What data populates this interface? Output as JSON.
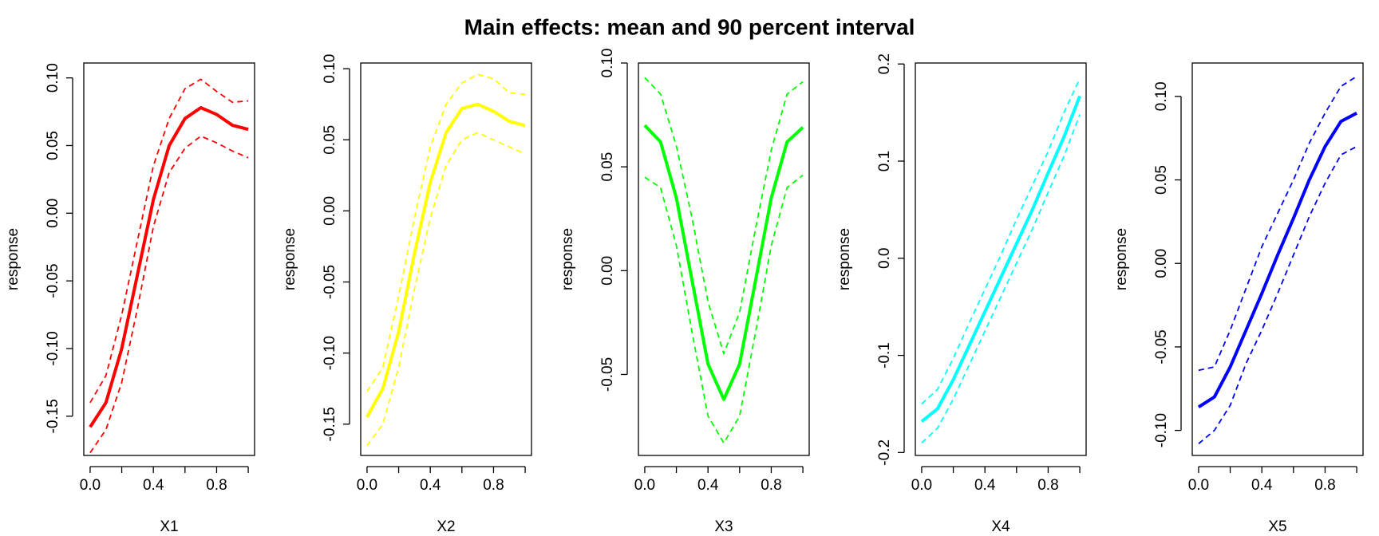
{
  "title": "Main effects: mean and 90 percent interval",
  "chart_data": [
    {
      "type": "line",
      "xlabel": "X1",
      "ylabel": "response",
      "x": [
        0,
        0.1,
        0.2,
        0.3,
        0.4,
        0.5,
        0.6,
        0.7,
        0.8,
        0.9,
        1
      ],
      "xlim": [
        -0.04,
        1.04
      ],
      "ylim": [
        -0.179,
        0.111
      ],
      "xticks": [
        {
          "value": 0,
          "label": "0.0"
        },
        {
          "value": 0.2,
          "label": null
        },
        {
          "value": 0.4,
          "label": "0.4"
        },
        {
          "value": 0.6,
          "label": null
        },
        {
          "value": 0.8,
          "label": "0.8"
        },
        {
          "value": 1,
          "label": null
        }
      ],
      "yticks": [
        {
          "value": -0.15,
          "label": "-0.15"
        },
        {
          "value": -0.1,
          "label": "-0.10"
        },
        {
          "value": -0.05,
          "label": "-0.05"
        },
        {
          "value": 0,
          "label": "0.00"
        },
        {
          "value": 0.05,
          "label": "0.05"
        },
        {
          "value": 0.1,
          "label": "0.10"
        }
      ],
      "series": [
        {
          "color": "#ff0000",
          "linestyle": "solid",
          "values": [
            -0.158,
            -0.14,
            -0.1,
            -0.045,
            0.01,
            0.05,
            0.07,
            0.078,
            0.073,
            0.065,
            0.062
          ]
        },
        {
          "color": "#ff0000",
          "linestyle": "dashed",
          "values": [
            -0.14,
            -0.12,
            -0.075,
            -0.02,
            0.035,
            0.07,
            0.092,
            0.099,
            0.09,
            0.082,
            0.083
          ]
        },
        {
          "color": "#ff0000",
          "linestyle": "dashed",
          "values": [
            -0.177,
            -0.16,
            -0.125,
            -0.07,
            -0.01,
            0.03,
            0.048,
            0.057,
            0.052,
            0.046,
            0.041
          ]
        }
      ]
    },
    {
      "type": "line",
      "xlabel": "X2",
      "ylabel": "response",
      "x": [
        0,
        0.1,
        0.2,
        0.3,
        0.4,
        0.5,
        0.6,
        0.7,
        0.8,
        0.9,
        1
      ],
      "xlim": [
        -0.04,
        1.04
      ],
      "ylim": [
        -0.172,
        0.104
      ],
      "xticks": [
        {
          "value": 0,
          "label": "0.0"
        },
        {
          "value": 0.2,
          "label": null
        },
        {
          "value": 0.4,
          "label": "0.4"
        },
        {
          "value": 0.6,
          "label": null
        },
        {
          "value": 0.8,
          "label": "0.8"
        },
        {
          "value": 1,
          "label": null
        }
      ],
      "yticks": [
        {
          "value": -0.15,
          "label": "-0.15"
        },
        {
          "value": -0.1,
          "label": "-0.10"
        },
        {
          "value": -0.05,
          "label": "-0.05"
        },
        {
          "value": 0,
          "label": "0.00"
        },
        {
          "value": 0.05,
          "label": "0.05"
        },
        {
          "value": 0.1,
          "label": "0.10"
        }
      ],
      "series": [
        {
          "color": "#ffff00",
          "linestyle": "solid",
          "values": [
            -0.145,
            -0.125,
            -0.085,
            -0.03,
            0.02,
            0.055,
            0.072,
            0.075,
            0.07,
            0.063,
            0.06
          ]
        },
        {
          "color": "#ffff00",
          "linestyle": "dashed",
          "values": [
            -0.127,
            -0.11,
            -0.06,
            -0.005,
            0.045,
            0.075,
            0.09,
            0.096,
            0.093,
            0.083,
            0.082
          ]
        },
        {
          "color": "#ffff00",
          "linestyle": "dashed",
          "values": [
            -0.165,
            -0.15,
            -0.11,
            -0.055,
            -0.005,
            0.032,
            0.05,
            0.055,
            0.05,
            0.045,
            0.04
          ]
        }
      ]
    },
    {
      "type": "line",
      "xlabel": "X3",
      "ylabel": "response",
      "x": [
        0,
        0.1,
        0.2,
        0.3,
        0.4,
        0.5,
        0.6,
        0.7,
        0.8,
        0.9,
        1
      ],
      "xlim": [
        -0.04,
        1.04
      ],
      "ylim": [
        -0.089,
        0.1
      ],
      "xticks": [
        {
          "value": 0,
          "label": "0.0"
        },
        {
          "value": 0.2,
          "label": null
        },
        {
          "value": 0.4,
          "label": "0.4"
        },
        {
          "value": 0.6,
          "label": null
        },
        {
          "value": 0.8,
          "label": "0.8"
        },
        {
          "value": 1,
          "label": null
        }
      ],
      "yticks": [
        {
          "value": -0.05,
          "label": "-0.05"
        },
        {
          "value": 0,
          "label": "0.00"
        },
        {
          "value": 0.05,
          "label": "0.05"
        },
        {
          "value": 0.1,
          "label": "0.10"
        }
      ],
      "series": [
        {
          "color": "#00ff00",
          "linestyle": "solid",
          "values": [
            0.07,
            0.062,
            0.035,
            -0.005,
            -0.045,
            -0.062,
            -0.045,
            -0.005,
            0.035,
            0.062,
            0.069
          ]
        },
        {
          "color": "#00ff00",
          "linestyle": "dashed",
          "values": [
            0.093,
            0.085,
            0.06,
            0.025,
            -0.015,
            -0.04,
            -0.02,
            0.02,
            0.058,
            0.085,
            0.091
          ]
        },
        {
          "color": "#00ff00",
          "linestyle": "dashed",
          "values": [
            0.045,
            0.04,
            0.012,
            -0.03,
            -0.07,
            -0.083,
            -0.07,
            -0.03,
            0.012,
            0.04,
            0.046
          ]
        }
      ]
    },
    {
      "type": "line",
      "xlabel": "X4",
      "ylabel": "response",
      "x": [
        0,
        0.1,
        0.2,
        0.3,
        0.4,
        0.5,
        0.6,
        0.7,
        0.8,
        0.9,
        1
      ],
      "xlim": [
        -0.04,
        1.04
      ],
      "ylim": [
        -0.203,
        0.201
      ],
      "xticks": [
        {
          "value": 0,
          "label": "0.0"
        },
        {
          "value": 0.2,
          "label": null
        },
        {
          "value": 0.4,
          "label": "0.4"
        },
        {
          "value": 0.6,
          "label": null
        },
        {
          "value": 0.8,
          "label": "0.8"
        },
        {
          "value": 1,
          "label": null
        }
      ],
      "yticks": [
        {
          "value": -0.2,
          "label": "-0.2"
        },
        {
          "value": -0.1,
          "label": "-0.1"
        },
        {
          "value": 0,
          "label": "0.0"
        },
        {
          "value": 0.1,
          "label": "0.1"
        },
        {
          "value": 0.2,
          "label": "0.2"
        }
      ],
      "series": [
        {
          "color": "#00ffff",
          "linestyle": "solid",
          "values": [
            -0.168,
            -0.155,
            -0.125,
            -0.09,
            -0.055,
            -0.02,
            0.015,
            0.05,
            0.088,
            0.125,
            0.167
          ]
        },
        {
          "color": "#00ffff",
          "linestyle": "dashed",
          "values": [
            -0.15,
            -0.135,
            -0.103,
            -0.067,
            -0.032,
            0.003,
            0.04,
            0.075,
            0.11,
            0.15,
            0.185
          ]
        },
        {
          "color": "#00ffff",
          "linestyle": "dashed",
          "values": [
            -0.19,
            -0.175,
            -0.145,
            -0.11,
            -0.075,
            -0.04,
            -0.005,
            0.03,
            0.068,
            0.105,
            0.148
          ]
        }
      ]
    },
    {
      "type": "line",
      "xlabel": "X5",
      "ylabel": "response",
      "x": [
        0,
        0.1,
        0.2,
        0.3,
        0.4,
        0.5,
        0.6,
        0.7,
        0.8,
        0.9,
        1
      ],
      "xlim": [
        -0.04,
        1.04
      ],
      "ylim": [
        -0.115,
        0.12
      ],
      "xticks": [
        {
          "value": 0,
          "label": "0.0"
        },
        {
          "value": 0.2,
          "label": null
        },
        {
          "value": 0.4,
          "label": "0.4"
        },
        {
          "value": 0.6,
          "label": null
        },
        {
          "value": 0.8,
          "label": "0.8"
        },
        {
          "value": 1,
          "label": null
        }
      ],
      "yticks": [
        {
          "value": -0.1,
          "label": "-0.10"
        },
        {
          "value": -0.05,
          "label": "-0.05"
        },
        {
          "value": 0,
          "label": "0.00"
        },
        {
          "value": 0.05,
          "label": "0.05"
        },
        {
          "value": 0.1,
          "label": "0.10"
        }
      ],
      "series": [
        {
          "color": "#0000ff",
          "linestyle": "solid",
          "values": [
            -0.086,
            -0.08,
            -0.062,
            -0.04,
            -0.018,
            0.005,
            0.027,
            0.05,
            0.07,
            0.085,
            0.09
          ]
        },
        {
          "color": "#0000ff",
          "linestyle": "dashed",
          "values": [
            -0.064,
            -0.062,
            -0.04,
            -0.015,
            0.01,
            0.03,
            0.05,
            0.072,
            0.09,
            0.106,
            0.112
          ]
        },
        {
          "color": "#0000ff",
          "linestyle": "dashed",
          "values": [
            -0.108,
            -0.1,
            -0.085,
            -0.06,
            -0.04,
            -0.018,
            0.005,
            0.028,
            0.048,
            0.065,
            0.07
          ]
        }
      ]
    }
  ]
}
